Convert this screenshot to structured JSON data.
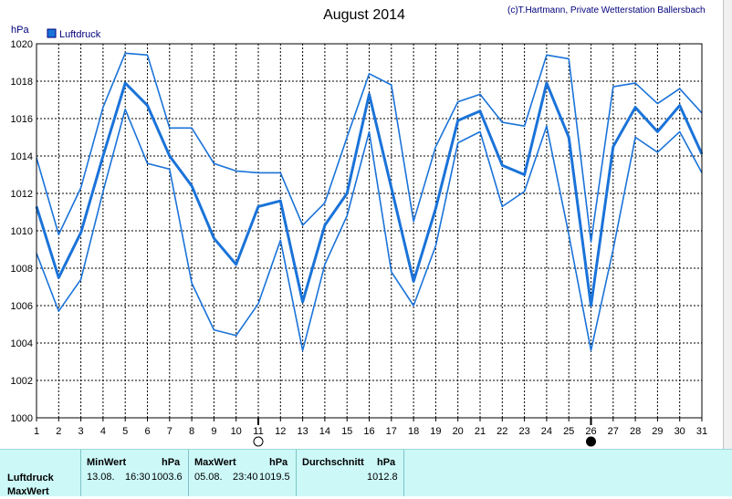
{
  "chart_data": {
    "type": "line",
    "title": "August 2014",
    "credit": "(c)T.Hartmann, Private Wetterstation Ballersbach",
    "ylabel": "hPa",
    "ylim": [
      1000,
      1020
    ],
    "yticks": [
      "1000",
      "1002",
      "1004",
      "1006",
      "1008",
      "1010",
      "1012",
      "1014",
      "1016",
      "1018",
      "1020"
    ],
    "x": [
      1,
      2,
      3,
      4,
      5,
      6,
      7,
      8,
      9,
      10,
      11,
      12,
      13,
      14,
      15,
      16,
      17,
      18,
      19,
      20,
      21,
      22,
      23,
      24,
      25,
      26,
      27,
      28,
      29,
      30,
      31
    ],
    "xlim": [
      1,
      31
    ],
    "grid": true,
    "legend": {
      "position": "top-left",
      "label": "Luftdruck"
    },
    "color": "#1a73d9",
    "series": [
      {
        "name": "Luftdruck",
        "role": "max",
        "values": [
          1013.9,
          1009.8,
          1012.3,
          1016.6,
          1019.5,
          1019.4,
          1015.5,
          1015.5,
          1013.6,
          1013.2,
          1013.1,
          1013.1,
          1010.3,
          1011.5,
          1015.0,
          1018.4,
          1017.8,
          1010.5,
          1014.5,
          1016.9,
          1017.3,
          1015.8,
          1015.6,
          1019.4,
          1019.2,
          1009.4,
          1017.7,
          1017.9,
          1016.8,
          1017.6,
          1016.3
        ]
      },
      {
        "name": "Luftdruck",
        "role": "mean",
        "values": [
          1011.3,
          1007.5,
          1009.9,
          1014.0,
          1017.9,
          1016.7,
          1014.0,
          1012.4,
          1009.6,
          1008.2,
          1011.3,
          1011.6,
          1006.2,
          1010.3,
          1012.0,
          1017.3,
          1012.3,
          1007.3,
          1011.2,
          1015.9,
          1016.4,
          1013.5,
          1013.0,
          1017.9,
          1015.0,
          1006.0,
          1014.5,
          1016.6,
          1015.3,
          1016.7,
          1014.1
        ]
      },
      {
        "name": "Luftdruck",
        "role": "min",
        "values": [
          1008.8,
          1005.7,
          1007.4,
          1012.1,
          1016.5,
          1013.6,
          1013.3,
          1007.2,
          1004.7,
          1004.4,
          1006.1,
          1009.5,
          1003.6,
          1008.2,
          1010.8,
          1015.3,
          1007.8,
          1006.0,
          1009.2,
          1014.7,
          1015.3,
          1011.3,
          1012.1,
          1015.6,
          1009.8,
          1003.6,
          1009.0,
          1015.0,
          1014.2,
          1015.3,
          1013.1
        ]
      }
    ],
    "moon_phases": [
      {
        "day": 11,
        "phase": "full"
      },
      {
        "day": 26,
        "phase": "new"
      }
    ]
  },
  "stats": {
    "rows": [
      "Luftdruck",
      "MaxWert"
    ],
    "min": {
      "label": "MinWert",
      "unit": "hPa",
      "date": "13.08.",
      "time": "16:30",
      "value": "1003.6"
    },
    "max": {
      "label": "MaxWert",
      "unit": "hPa",
      "date": "05.08.",
      "time": "23:40",
      "value": "1019.5"
    },
    "avg": {
      "label": "Durchschnitt",
      "unit": "hPa",
      "value": "1012.8"
    }
  }
}
